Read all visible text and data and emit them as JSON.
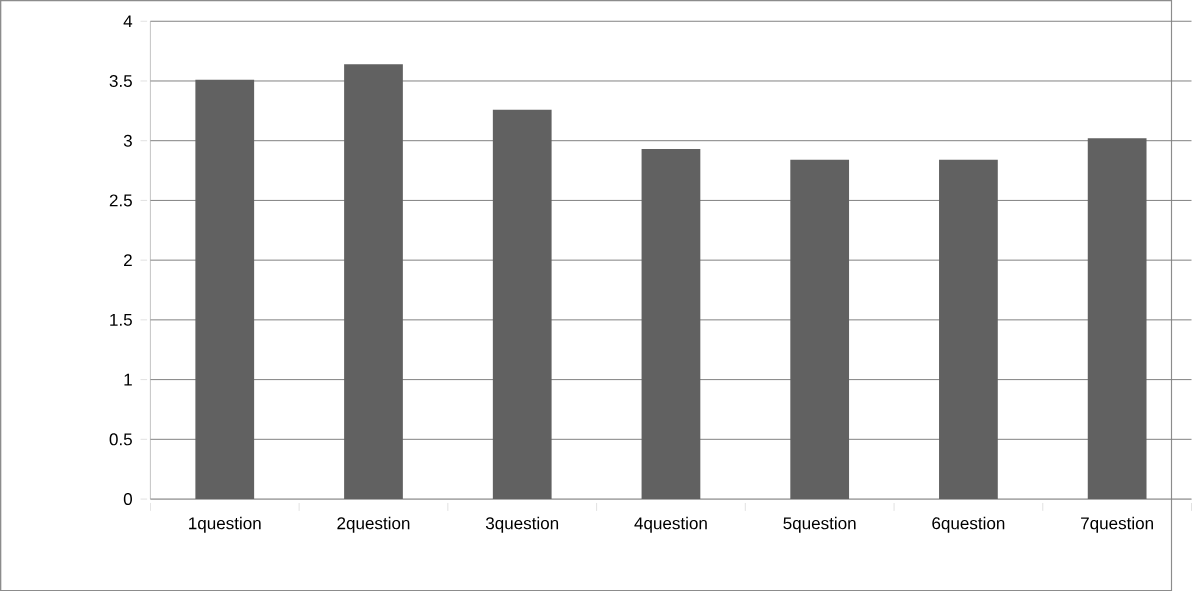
{
  "chart_data": {
    "type": "bar",
    "categories": [
      "1question",
      "2question",
      "3question",
      "4question",
      "5question",
      "6question",
      "7question"
    ],
    "values": [
      3.51,
      3.64,
      3.26,
      2.93,
      2.84,
      2.84,
      3.02
    ],
    "color": "#616161",
    "ylim": [
      0,
      4
    ],
    "yticks": [
      0,
      0.5,
      1,
      1.5,
      2,
      2.5,
      3,
      3.5,
      4
    ],
    "grid": "y"
  }
}
